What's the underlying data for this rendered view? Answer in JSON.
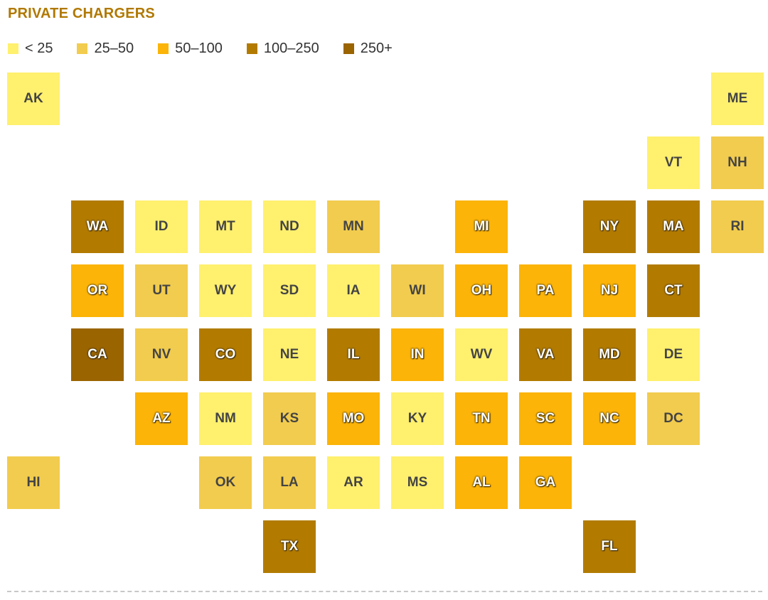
{
  "title": "PRIVATE CHARGERS",
  "colors": {
    "lt25": "#fff06e",
    "25_50": "#f2cc4e",
    "50_100": "#fbb407",
    "100_250": "#b27b00",
    "250plus": "#9a6400"
  },
  "legend": [
    {
      "label": "< 25",
      "bin": "lt25"
    },
    {
      "label": "25–50",
      "bin": "25_50"
    },
    {
      "label": "50–100",
      "bin": "50_100"
    },
    {
      "label": "100–250",
      "bin": "100_250"
    },
    {
      "label": "250+",
      "bin": "250plus"
    }
  ],
  "states": [
    {
      "abbr": "AK",
      "row": 0,
      "col": 0,
      "bin": "lt25"
    },
    {
      "abbr": "ME",
      "row": 0,
      "col": 11,
      "bin": "lt25"
    },
    {
      "abbr": "VT",
      "row": 1,
      "col": 10,
      "bin": "lt25"
    },
    {
      "abbr": "NH",
      "row": 1,
      "col": 11,
      "bin": "25_50"
    },
    {
      "abbr": "WA",
      "row": 2,
      "col": 1,
      "bin": "100_250"
    },
    {
      "abbr": "ID",
      "row": 2,
      "col": 2,
      "bin": "lt25"
    },
    {
      "abbr": "MT",
      "row": 2,
      "col": 3,
      "bin": "lt25"
    },
    {
      "abbr": "ND",
      "row": 2,
      "col": 4,
      "bin": "lt25"
    },
    {
      "abbr": "MN",
      "row": 2,
      "col": 5,
      "bin": "25_50"
    },
    {
      "abbr": "MI",
      "row": 2,
      "col": 7,
      "bin": "50_100"
    },
    {
      "abbr": "NY",
      "row": 2,
      "col": 9,
      "bin": "100_250"
    },
    {
      "abbr": "MA",
      "row": 2,
      "col": 10,
      "bin": "100_250"
    },
    {
      "abbr": "RI",
      "row": 2,
      "col": 11,
      "bin": "25_50"
    },
    {
      "abbr": "OR",
      "row": 3,
      "col": 1,
      "bin": "50_100"
    },
    {
      "abbr": "UT",
      "row": 3,
      "col": 2,
      "bin": "25_50"
    },
    {
      "abbr": "WY",
      "row": 3,
      "col": 3,
      "bin": "lt25"
    },
    {
      "abbr": "SD",
      "row": 3,
      "col": 4,
      "bin": "lt25"
    },
    {
      "abbr": "IA",
      "row": 3,
      "col": 5,
      "bin": "lt25"
    },
    {
      "abbr": "WI",
      "row": 3,
      "col": 6,
      "bin": "25_50"
    },
    {
      "abbr": "OH",
      "row": 3,
      "col": 7,
      "bin": "50_100"
    },
    {
      "abbr": "PA",
      "row": 3,
      "col": 8,
      "bin": "50_100"
    },
    {
      "abbr": "NJ",
      "row": 3,
      "col": 9,
      "bin": "50_100"
    },
    {
      "abbr": "CT",
      "row": 3,
      "col": 10,
      "bin": "100_250"
    },
    {
      "abbr": "CA",
      "row": 4,
      "col": 1,
      "bin": "250plus"
    },
    {
      "abbr": "NV",
      "row": 4,
      "col": 2,
      "bin": "25_50"
    },
    {
      "abbr": "CO",
      "row": 4,
      "col": 3,
      "bin": "100_250"
    },
    {
      "abbr": "NE",
      "row": 4,
      "col": 4,
      "bin": "lt25"
    },
    {
      "abbr": "IL",
      "row": 4,
      "col": 5,
      "bin": "100_250"
    },
    {
      "abbr": "IN",
      "row": 4,
      "col": 6,
      "bin": "50_100"
    },
    {
      "abbr": "WV",
      "row": 4,
      "col": 7,
      "bin": "lt25"
    },
    {
      "abbr": "VA",
      "row": 4,
      "col": 8,
      "bin": "100_250"
    },
    {
      "abbr": "MD",
      "row": 4,
      "col": 9,
      "bin": "100_250"
    },
    {
      "abbr": "DE",
      "row": 4,
      "col": 10,
      "bin": "lt25"
    },
    {
      "abbr": "AZ",
      "row": 5,
      "col": 2,
      "bin": "50_100"
    },
    {
      "abbr": "NM",
      "row": 5,
      "col": 3,
      "bin": "lt25"
    },
    {
      "abbr": "KS",
      "row": 5,
      "col": 4,
      "bin": "25_50"
    },
    {
      "abbr": "MO",
      "row": 5,
      "col": 5,
      "bin": "50_100"
    },
    {
      "abbr": "KY",
      "row": 5,
      "col": 6,
      "bin": "lt25"
    },
    {
      "abbr": "TN",
      "row": 5,
      "col": 7,
      "bin": "50_100"
    },
    {
      "abbr": "SC",
      "row": 5,
      "col": 8,
      "bin": "50_100"
    },
    {
      "abbr": "NC",
      "row": 5,
      "col": 9,
      "bin": "50_100"
    },
    {
      "abbr": "DC",
      "row": 5,
      "col": 10,
      "bin": "25_50"
    },
    {
      "abbr": "HI",
      "row": 6,
      "col": 0,
      "bin": "25_50"
    },
    {
      "abbr": "OK",
      "row": 6,
      "col": 3,
      "bin": "25_50"
    },
    {
      "abbr": "LA",
      "row": 6,
      "col": 4,
      "bin": "25_50"
    },
    {
      "abbr": "AR",
      "row": 6,
      "col": 5,
      "bin": "lt25"
    },
    {
      "abbr": "MS",
      "row": 6,
      "col": 6,
      "bin": "lt25"
    },
    {
      "abbr": "AL",
      "row": 6,
      "col": 7,
      "bin": "50_100"
    },
    {
      "abbr": "GA",
      "row": 6,
      "col": 8,
      "bin": "50_100"
    },
    {
      "abbr": "TX",
      "row": 7,
      "col": 4,
      "bin": "100_250"
    },
    {
      "abbr": "FL",
      "row": 7,
      "col": 9,
      "bin": "100_250"
    }
  ]
}
